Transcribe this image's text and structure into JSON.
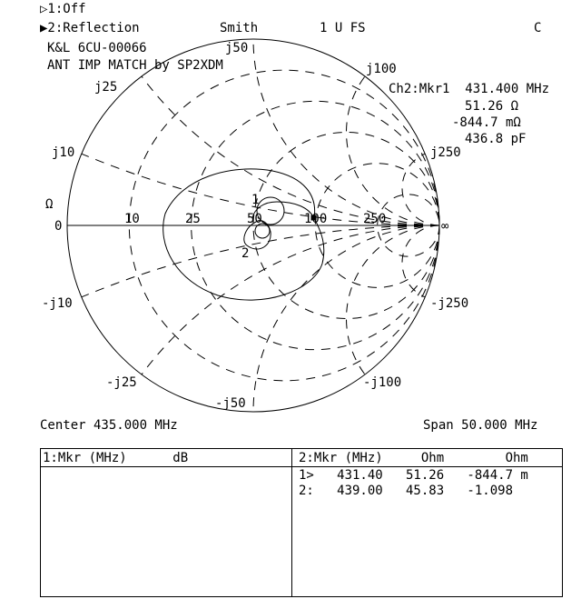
{
  "header": {
    "ch1": "▷1:Off",
    "ch2": "▶2:Reflection",
    "format": "Smith",
    "scale": "1 U FS",
    "flag": "C",
    "title1": "K&L 6CU-00066",
    "title2": "ANT IMP MATCH by SP2XDM"
  },
  "marker_readout": {
    "line1": "Ch2:Mkr1  431.400 MHz",
    "resistance": "51.26 Ω",
    "reactance": "-844.7 mΩ",
    "capacitance": "436.8 pF"
  },
  "smith": {
    "unit_label": "Ω",
    "resistance_labels": [
      "0",
      "10",
      "25",
      "50",
      "100",
      "250"
    ],
    "infinity_label": "∞",
    "reactance_labels_pos": [
      "j10",
      "j25",
      "j50",
      "j100",
      "j250"
    ],
    "reactance_labels_neg": [
      "-j10",
      "-j25",
      "-j50",
      "-j100",
      "-j250"
    ],
    "marker_labels": [
      "1",
      "2"
    ],
    "reference_impedance_ohm": 50,
    "trace_color": "#000000"
  },
  "footer": {
    "center": "Center 435.000 MHz",
    "span": "Span 50.000 MHz"
  },
  "table": {
    "left_header": "1:Mkr (MHz)      dB",
    "right_header": "2:Mkr (MHz)     Ohm        Ohm",
    "rows": [
      "1>   431.40   51.26   -844.7 m",
      "2:   439.00   45.83   -1.098"
    ]
  }
}
